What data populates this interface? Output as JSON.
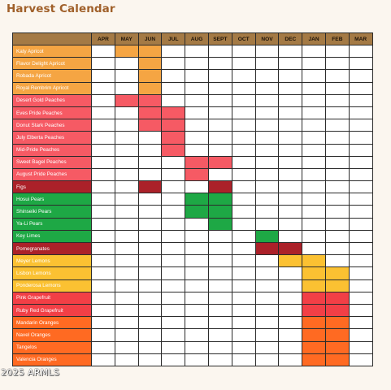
{
  "title": "Harvest Calendar",
  "months": [
    "APR",
    "MAY",
    "JUN",
    "JUL",
    "AUG",
    "SEPT",
    "OCT",
    "NOV",
    "DEC",
    "JAN",
    "FEB",
    "MAR"
  ],
  "rows": [
    {
      "name": "Katy Apricot",
      "color": "#f5a543",
      "harvest": [
        "MAY",
        "JUN"
      ]
    },
    {
      "name": "Flavor Delight Apricot",
      "color": "#f5a543",
      "harvest": [
        "JUN"
      ]
    },
    {
      "name": "Robada Apricot",
      "color": "#f5a543",
      "harvest": [
        "JUN"
      ]
    },
    {
      "name": "Royal Rembrim Apricot",
      "color": "#f5a543",
      "harvest": [
        "JUN"
      ]
    },
    {
      "name": "Desert Gold Peaches",
      "color": "#f65a64",
      "harvest": [
        "MAY",
        "JUN"
      ]
    },
    {
      "name": "Eves Pride Peaches",
      "color": "#f65a64",
      "harvest": [
        "JUN",
        "JUL"
      ]
    },
    {
      "name": "Donut Stark Peaches",
      "color": "#f65a64",
      "harvest": [
        "JUN",
        "JUL"
      ]
    },
    {
      "name": "July Elberta Peaches",
      "color": "#f65a64",
      "harvest": [
        "JUL"
      ]
    },
    {
      "name": "Mid-Pride Peaches",
      "color": "#f65a64",
      "harvest": [
        "JUL"
      ]
    },
    {
      "name": "Sweet Bagel Peaches",
      "color": "#f65a64",
      "harvest": [
        "AUG",
        "SEPT"
      ]
    },
    {
      "name": "August Pride Peaches",
      "color": "#f65a64",
      "harvest": [
        "AUG"
      ]
    },
    {
      "name": "Figs",
      "color": "#ab2129",
      "harvest": [
        "JUN",
        "SEPT"
      ]
    },
    {
      "name": "Hosui Pears",
      "color": "#1ea845",
      "harvest": [
        "AUG",
        "SEPT"
      ]
    },
    {
      "name": "Shinseiki Pears",
      "color": "#1ea845",
      "harvest": [
        "AUG",
        "SEPT"
      ]
    },
    {
      "name": "Ya-Li Pears",
      "color": "#1ea845",
      "harvest": [
        "SEPT"
      ]
    },
    {
      "name": "Key Limes",
      "color": "#1ea845",
      "harvest": [
        "NOV"
      ]
    },
    {
      "name": "Pomegranates",
      "color": "#ab2129",
      "harvest": [
        "NOV",
        "DEC"
      ]
    },
    {
      "name": "Meyer Lemons",
      "color": "#fbc132",
      "harvest": [
        "DEC",
        "JAN"
      ]
    },
    {
      "name": "Lisbon Lemons",
      "color": "#fbc132",
      "harvest": [
        "JAN",
        "FEB"
      ]
    },
    {
      "name": "Ponderosa Lemons",
      "color": "#fbc132",
      "harvest": [
        "JAN",
        "FEB"
      ]
    },
    {
      "name": "Pink Grapefruit",
      "color": "#f23f46",
      "harvest": [
        "JAN",
        "FEB"
      ]
    },
    {
      "name": "Ruby Red Grapefruit",
      "color": "#f23f46",
      "harvest": [
        "JAN",
        "FEB"
      ]
    },
    {
      "name": "Mandarin Oranges",
      "color": "#ff6a22",
      "harvest": [
        "JAN",
        "FEB"
      ]
    },
    {
      "name": "Navel Oranges",
      "color": "#ff6a22",
      "harvest": [
        "JAN",
        "FEB"
      ]
    },
    {
      "name": "Tangelos",
      "color": "#ff6a22",
      "harvest": [
        "JAN",
        "FEB"
      ]
    },
    {
      "name": "Valencia Oranges",
      "color": "#ff6a22",
      "harvest": [
        "JAN",
        "FEB"
      ]
    }
  ],
  "watermark": "2025 ARMLS"
}
